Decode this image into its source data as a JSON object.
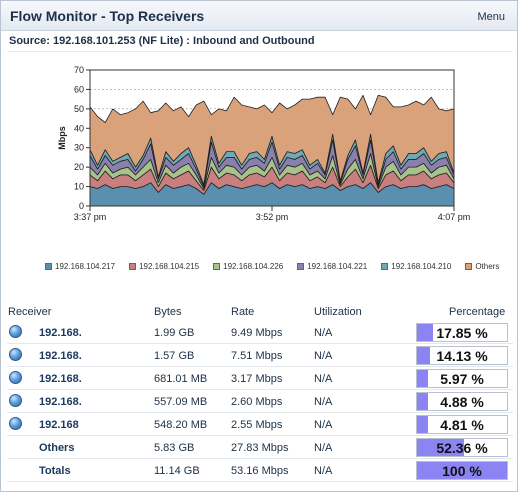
{
  "window": {
    "title": "Flow Monitor - Top Receivers",
    "menu_label": "Menu"
  },
  "source": "Source: 192.168.101.253 (NF Lite) : Inbound and Outbound",
  "legend": [
    {
      "label": "192.168.104.217",
      "color": "#5b8fb0"
    },
    {
      "label": "192.168.104.215",
      "color": "#c97f7d"
    },
    {
      "label": "192.168.104.226",
      "color": "#a8c28c"
    },
    {
      "label": "192.168.104.221",
      "color": "#8b7fae"
    },
    {
      "label": "192.168.104.210",
      "color": "#6fa9b6"
    },
    {
      "label": "Others",
      "color": "#d9a27a"
    }
  ],
  "table": {
    "headers": {
      "receiver": "Receiver",
      "bytes": "Bytes",
      "rate": "Rate",
      "utilization": "Utilization",
      "percentage": "Percentage"
    },
    "rows": [
      {
        "receiver": "192.168.",
        "bytes": "1.99 GB",
        "rate": "9.49 Mbps",
        "utilization": "N/A",
        "percentage": "17.85 %",
        "pct": 17.85,
        "icon": "globe-icon"
      },
      {
        "receiver": "192.168.",
        "bytes": "1.57 GB",
        "rate": "7.51 Mbps",
        "utilization": "N/A",
        "percentage": "14.13 %",
        "pct": 14.13,
        "icon": "globe-icon"
      },
      {
        "receiver": "192.168.",
        "bytes": "681.01 MB",
        "rate": "3.17 Mbps",
        "utilization": "N/A",
        "percentage": "5.97 %",
        "pct": 5.97,
        "icon": "globe-icon"
      },
      {
        "receiver": "192.168.",
        "bytes": "557.09 MB",
        "rate": "2.60 Mbps",
        "utilization": "N/A",
        "percentage": "4.88 %",
        "pct": 4.88,
        "icon": "globe-icon"
      },
      {
        "receiver": "192.168",
        "bytes": "548.20 MB",
        "rate": "2.55 Mbps",
        "utilization": "N/A",
        "percentage": "4.81 %",
        "pct": 4.81,
        "icon": "globe-icon"
      },
      {
        "receiver": "Others",
        "bytes": "5.83 GB",
        "rate": "27.83 Mbps",
        "utilization": "N/A",
        "percentage": "52.36 %",
        "pct": 52.36,
        "icon": ""
      },
      {
        "receiver": "Totals",
        "bytes": "11.14 GB",
        "rate": "53.16 Mbps",
        "utilization": "N/A",
        "percentage": "100 %",
        "pct": 100,
        "icon": ""
      }
    ]
  },
  "chart_data": {
    "type": "area",
    "stacked": true,
    "xlabel": "",
    "ylabel": "Mbps",
    "ylim": [
      0,
      70
    ],
    "yticks": [
      0,
      10,
      20,
      30,
      40,
      50,
      60,
      70
    ],
    "x_tick_labels": [
      "3:37 pm",
      "3:52 pm",
      "4:07 pm"
    ],
    "grid": true,
    "legend_position": "bottom",
    "series": [
      {
        "name": "192.168.104.217",
        "color": "#5b8fb0",
        "values": [
          10,
          9,
          11,
          9,
          10,
          10,
          9,
          10,
          12,
          7,
          11,
          9,
          10,
          11,
          9,
          6,
          12,
          9,
          11,
          10,
          9,
          10,
          11,
          10,
          12,
          9,
          11,
          10,
          11,
          9,
          10,
          9,
          11,
          8,
          10,
          11,
          9,
          12,
          7,
          10,
          11,
          9,
          10,
          10,
          11,
          9,
          10,
          11,
          9
        ]
      },
      {
        "name": "192.168.104.215",
        "color": "#c97f7d",
        "values": [
          6,
          4,
          7,
          5,
          6,
          6,
          4,
          6,
          7,
          3,
          6,
          5,
          6,
          7,
          4,
          2,
          8,
          5,
          6,
          6,
          4,
          6,
          6,
          5,
          8,
          4,
          6,
          6,
          7,
          4,
          5,
          3,
          9,
          2,
          5,
          8,
          3,
          9,
          2,
          6,
          7,
          4,
          6,
          6,
          7,
          5,
          6,
          6,
          3
        ]
      },
      {
        "name": "192.168.104.226",
        "color": "#a8c28c",
        "values": [
          4,
          3,
          4,
          3,
          3,
          4,
          3,
          4,
          5,
          2,
          4,
          3,
          4,
          4,
          3,
          1,
          5,
          3,
          4,
          4,
          3,
          4,
          4,
          3,
          5,
          3,
          4,
          4,
          4,
          3,
          3,
          2,
          6,
          1,
          4,
          5,
          2,
          6,
          1,
          4,
          5,
          3,
          4,
          4,
          4,
          3,
          4,
          4,
          2
        ]
      },
      {
        "name": "192.168.104.221",
        "color": "#8b7fae",
        "values": [
          6,
          3,
          4,
          4,
          4,
          4,
          2,
          4,
          8,
          2,
          4,
          4,
          4,
          5,
          3,
          1,
          8,
          3,
          4,
          5,
          3,
          4,
          4,
          4,
          8,
          3,
          4,
          4,
          4,
          3,
          4,
          2,
          8,
          1,
          5,
          7,
          2,
          7,
          1,
          4,
          5,
          3,
          4,
          4,
          5,
          4,
          4,
          4,
          2
        ]
      },
      {
        "name": "192.168.104.210",
        "color": "#6fa9b6",
        "values": [
          3,
          2,
          3,
          2,
          2,
          3,
          2,
          2,
          3,
          1,
          3,
          2,
          3,
          3,
          2,
          1,
          3,
          2,
          3,
          3,
          2,
          3,
          3,
          2,
          3,
          2,
          3,
          3,
          3,
          2,
          2,
          1,
          3,
          1,
          2,
          3,
          1,
          3,
          1,
          3,
          3,
          2,
          3,
          3,
          3,
          2,
          3,
          3,
          1
        ]
      },
      {
        "name": "Others",
        "color": "#d9a27a",
        "values": [
          22,
          25,
          14,
          27,
          22,
          21,
          30,
          28,
          13,
          34,
          25,
          26,
          24,
          16,
          31,
          43,
          11,
          28,
          21,
          28,
          31,
          24,
          22,
          28,
          12,
          32,
          22,
          25,
          26,
          34,
          32,
          39,
          10,
          43,
          29,
          16,
          40,
          10,
          45,
          29,
          20,
          30,
          25,
          27,
          22,
          33,
          23,
          21,
          33
        ]
      }
    ]
  }
}
